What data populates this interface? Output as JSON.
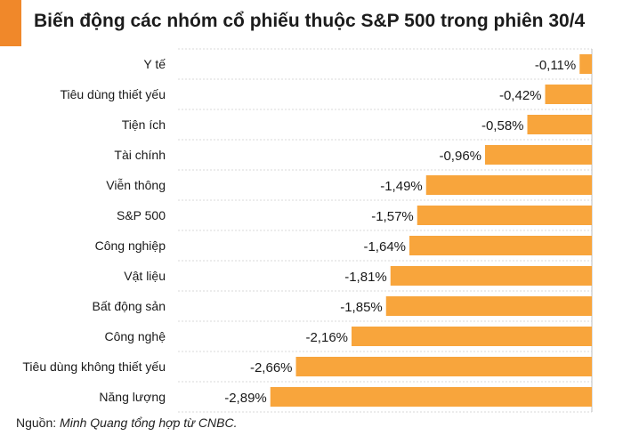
{
  "title": "Biến động các nhóm cổ phiếu thuộc S&P 500 trong phiên 30/4",
  "footer": {
    "label": "Nguồn:",
    "source": "Minh Quang tổng hợp từ CNBC."
  },
  "colors": {
    "bar": "#f8a53c",
    "accent": "#f0882a",
    "grid": "#d9d9d9",
    "text": "#1a1a1a"
  },
  "chart_data": {
    "type": "bar",
    "orientation": "horizontal",
    "title": "Biến động các nhóm cổ phiếu thuộc S&P 500 trong phiên 30/4",
    "xlabel": "",
    "ylabel": "",
    "xlim": [
      -3.0,
      0
    ],
    "grid": true,
    "unit": "%",
    "categories": [
      "Y tế",
      "Tiêu dùng thiết yếu",
      "Tiện ích",
      "Tài chính",
      "Viễn thông",
      "S&P 500",
      "Công nghiệp",
      "Vật liệu",
      "Bất động sản",
      "Công nghệ",
      "Tiêu dùng không thiết yếu",
      "Năng lượng"
    ],
    "values": [
      -0.11,
      -0.42,
      -0.58,
      -0.96,
      -1.49,
      -1.57,
      -1.64,
      -1.81,
      -1.85,
      -2.16,
      -2.66,
      -2.89
    ],
    "value_labels": [
      "-0,11%",
      "-0,42%",
      "-0,58%",
      "-0,96%",
      "-1,49%",
      "-1,57%",
      "-1,64%",
      "-1,81%",
      "-1,85%",
      "-2,16%",
      "-2,66%",
      "-2,89%"
    ]
  }
}
